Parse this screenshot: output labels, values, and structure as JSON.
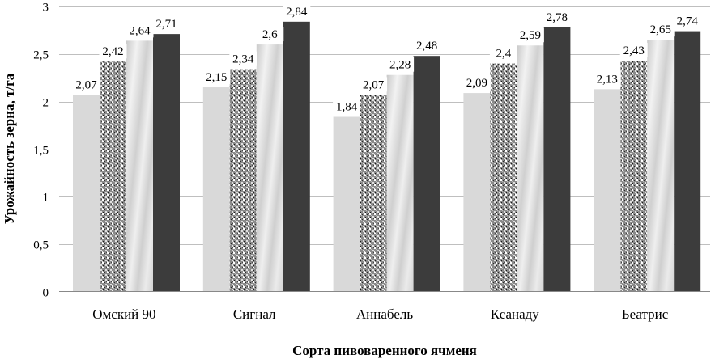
{
  "chart_data": {
    "type": "bar",
    "title": "",
    "xlabel": "Сорта пивоваренного ячменя",
    "ylabel": "Урожайность зерна, т/га",
    "ylim": [
      0,
      3
    ],
    "yticks": [
      "0",
      "0,5",
      "1",
      "1,5",
      "2",
      "2,5",
      "3"
    ],
    "grid": true,
    "legend": "none",
    "categories": [
      "Омский 90",
      "Сигнал",
      "Аннабель",
      "Ксанаду",
      "Беатрис"
    ],
    "series": [
      {
        "values": [
          2.07,
          2.15,
          1.84,
          2.09,
          2.13
        ],
        "labels": [
          "2,07",
          "2,15",
          "1,84",
          "2,09",
          "2,13"
        ],
        "color": "#d9d9d9",
        "pattern": "solid-light"
      },
      {
        "values": [
          2.42,
          2.34,
          2.07,
          2.4,
          2.43
        ],
        "labels": [
          "2,42",
          "2,34",
          "2,07",
          "2,4",
          "2,43"
        ],
        "color": "#7f7f7f",
        "pattern": "granite"
      },
      {
        "values": [
          2.64,
          2.6,
          2.28,
          2.59,
          2.65
        ],
        "labels": [
          "2,64",
          "2,6",
          "2,28",
          "2,59",
          "2,65"
        ],
        "color": "#dcdcdc",
        "pattern": "marble"
      },
      {
        "values": [
          2.71,
          2.84,
          2.48,
          2.78,
          2.74
        ],
        "labels": [
          "2,71",
          "2,84",
          "2,48",
          "2,78",
          "2,74"
        ],
        "color": "#3c3c3c",
        "pattern": "solid-dark"
      }
    ]
  }
}
